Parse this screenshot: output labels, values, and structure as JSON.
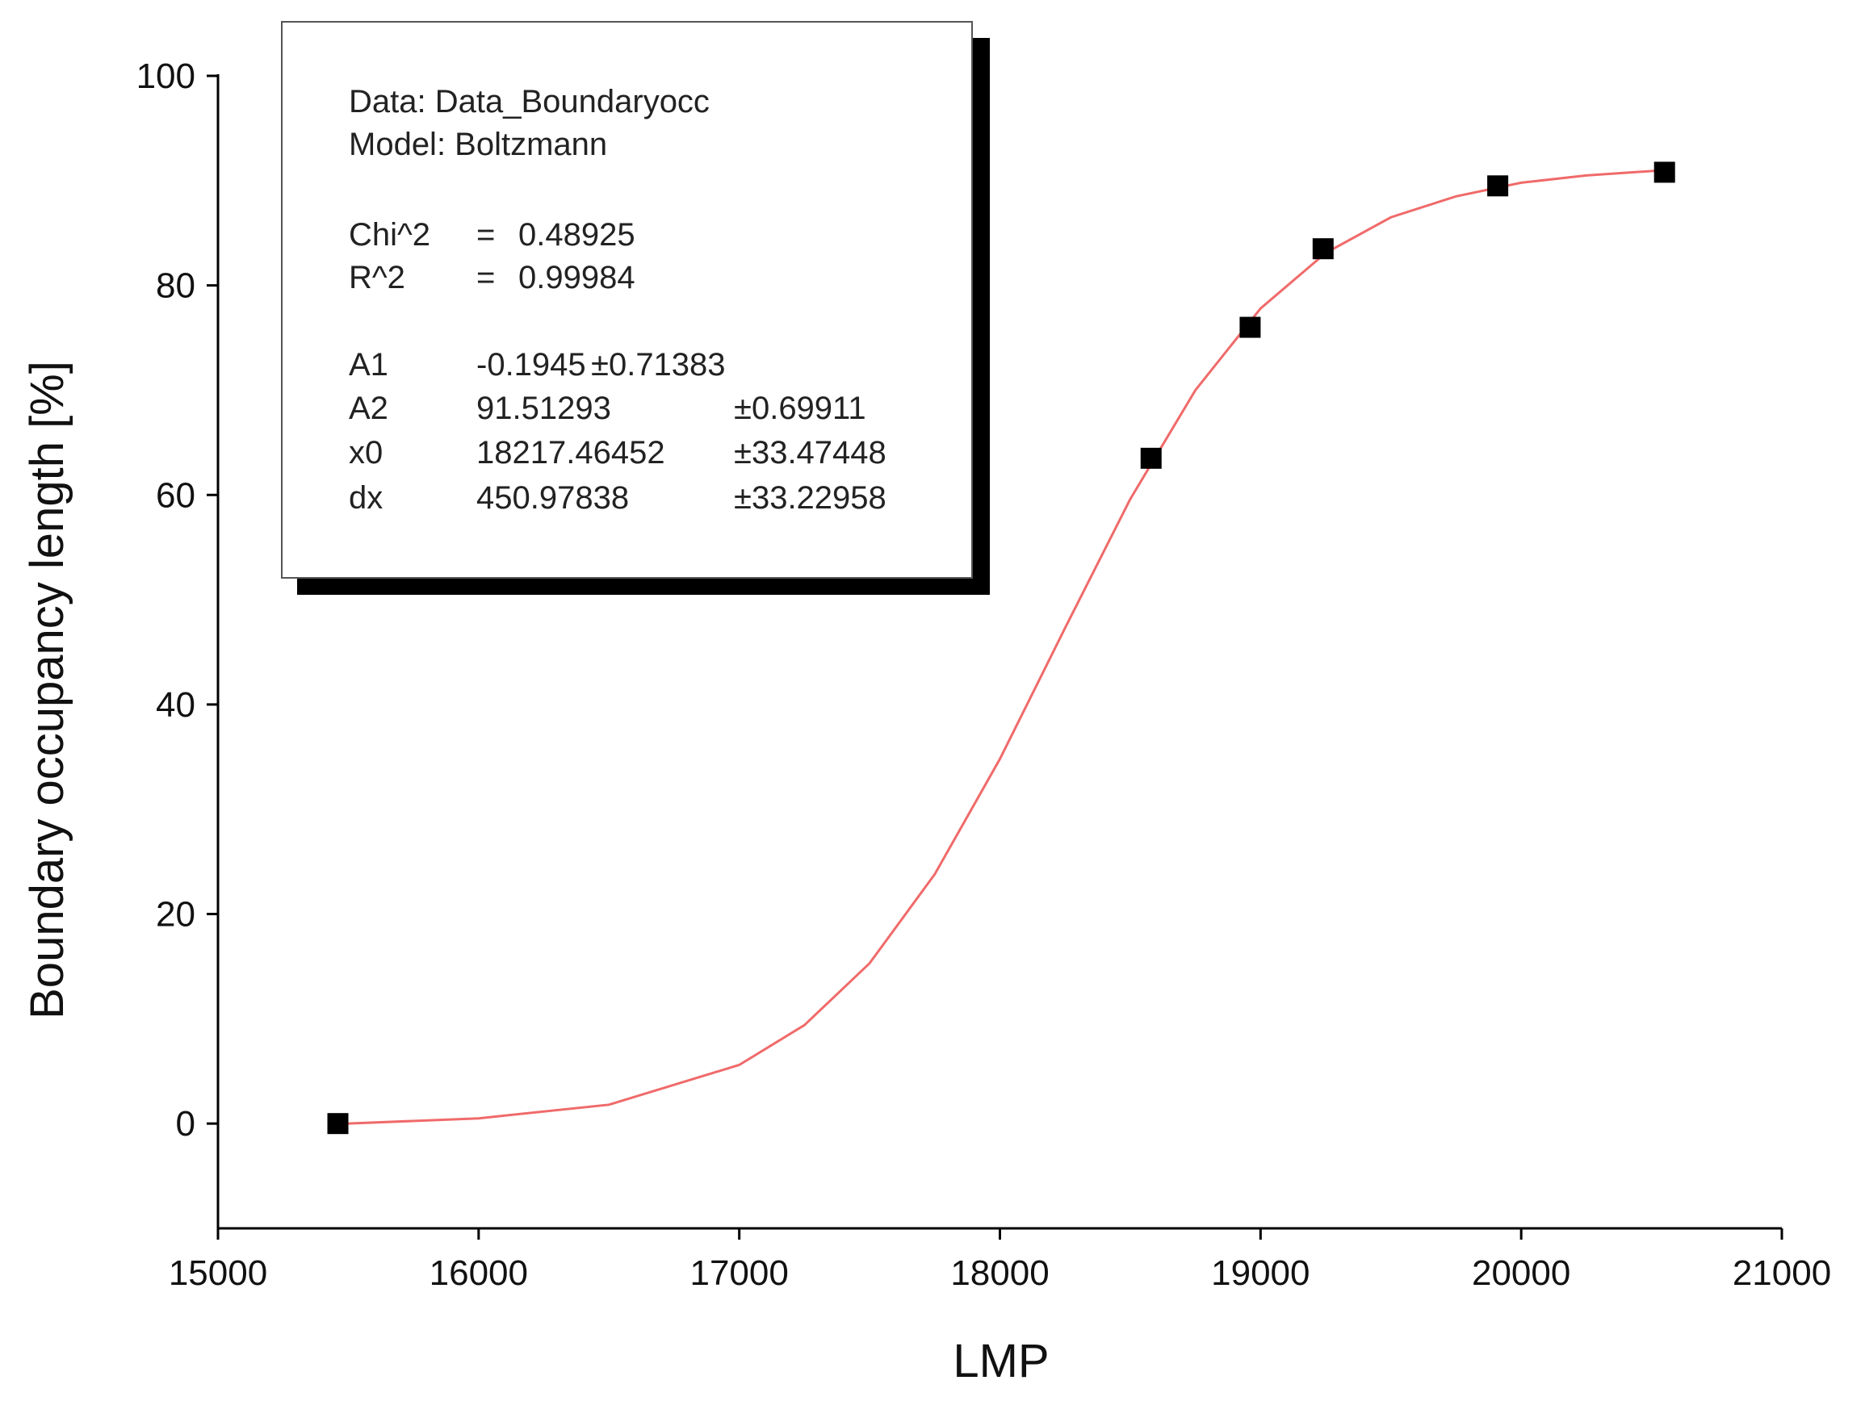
{
  "chart_data": {
    "type": "scatter",
    "x_label": "LMP",
    "y_label": "Boundary occupancy length [%]",
    "xlim": [
      15000,
      21000
    ],
    "ylim": [
      -10,
      100
    ],
    "xticks": [
      15000,
      16000,
      17000,
      18000,
      19000,
      20000,
      21000
    ],
    "yticks": [
      0,
      20,
      40,
      60,
      80,
      100
    ],
    "grid": false,
    "series": [
      {
        "type": "scatter",
        "color": "#000000",
        "x": [
          15460,
          18580,
          18960,
          19240,
          19910,
          20550
        ],
        "values": [
          0,
          63.5,
          76,
          83.5,
          89.5,
          90.8
        ]
      },
      {
        "type": "line",
        "color": "#f06a6a",
        "x": [
          15500,
          16000,
          16500,
          17000,
          17250,
          17500,
          17750,
          18000,
          18250,
          18500,
          18750,
          19000,
          19250,
          19500,
          19750,
          20000,
          20250,
          20550
        ],
        "values": [
          0.0,
          0.5,
          1.8,
          5.6,
          9.4,
          15.3,
          23.8,
          34.8,
          47.3,
          59.6,
          70.0,
          77.8,
          83.1,
          86.5,
          88.5,
          89.8,
          90.5,
          91.0
        ]
      }
    ],
    "fit_report": [
      [
        "Data: Data_Boundaryocc"
      ],
      [
        "Model: Boltzmann"
      ],
      [
        "Chi^2",
        "=",
        "0.48925"
      ],
      [
        "R^2",
        "=",
        "0.99984"
      ],
      [
        "A1",
        "-0.1945",
        "±0.71383"
      ],
      [
        "A2",
        "91.51293",
        "±0.69911"
      ],
      [
        "x0",
        "18217.46452",
        "±33.47448"
      ],
      [
        "dx",
        "450.97838",
        "±33.22958"
      ]
    ]
  }
}
